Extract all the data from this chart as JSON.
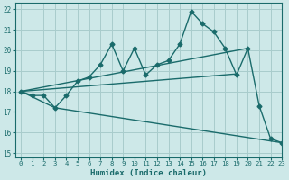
{
  "xlabel": "Humidex (Indice chaleur)",
  "xlim": [
    -0.5,
    23
  ],
  "ylim": [
    14.8,
    22.3
  ],
  "yticks": [
    15,
    16,
    17,
    18,
    19,
    20,
    21,
    22
  ],
  "xticks": [
    0,
    1,
    2,
    3,
    4,
    5,
    6,
    7,
    8,
    9,
    10,
    11,
    12,
    13,
    14,
    15,
    16,
    17,
    18,
    19,
    20,
    21,
    22,
    23
  ],
  "bg_color": "#cde8e8",
  "grid_color": "#a8cccc",
  "line_color": "#1a6b6b",
  "line1_x": [
    0,
    1,
    2,
    3,
    4,
    5,
    6,
    7,
    8,
    9,
    10,
    11,
    12,
    13,
    14,
    15,
    16,
    17,
    18,
    19,
    20,
    21,
    22,
    23
  ],
  "line1_y": [
    18.0,
    17.8,
    17.8,
    17.2,
    17.8,
    18.5,
    18.7,
    19.3,
    20.3,
    19.0,
    20.1,
    18.8,
    19.3,
    19.5,
    20.3,
    21.9,
    21.3,
    20.9,
    20.1,
    18.8,
    20.1,
    17.3,
    15.7,
    15.5
  ],
  "line2_x": [
    0,
    20
  ],
  "line2_y": [
    18.0,
    20.1
  ],
  "line3_x": [
    0,
    19
  ],
  "line3_y": [
    18.0,
    18.85
  ],
  "line4_x": [
    0,
    3,
    23
  ],
  "line4_y": [
    18.0,
    17.2,
    15.5
  ]
}
